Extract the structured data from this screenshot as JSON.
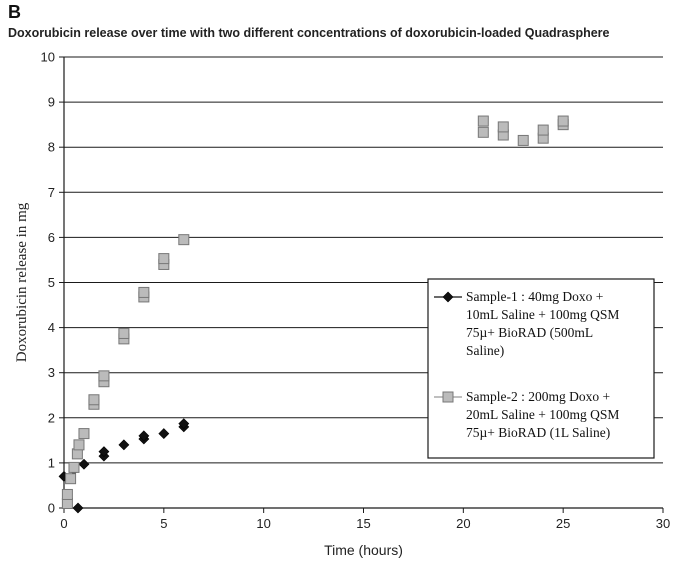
{
  "panel_letter": "B",
  "chart_data": {
    "type": "scatter",
    "title": "Doxorubicin release over time with two different concentrations of doxorubicin-loaded Quadrasphere",
    "xlabel": "Time (hours)",
    "ylabel": "Doxorubicin release in mg",
    "xlim": [
      0,
      30
    ],
    "ylim": [
      0,
      10
    ],
    "x_ticks": [
      "0",
      "5",
      "10",
      "15",
      "20",
      "25",
      "30"
    ],
    "y_ticks": [
      "0",
      "1",
      "2",
      "3",
      "4",
      "5",
      "6",
      "7",
      "8",
      "9",
      "10"
    ],
    "grid": "horizontal",
    "legend_position": "right",
    "series": [
      {
        "name_lines": [
          "Sample-1 : 40mg Doxo +",
          "10mL Saline + 100mg QSM",
          "75µ+ BioRAD (500mL",
          "Saline)"
        ],
        "marker": "diamond",
        "color": "#111111",
        "points": [
          [
            0,
            0.7
          ],
          [
            0.5,
            0.85
          ],
          [
            0.7,
            0.0
          ],
          [
            1,
            0.97
          ],
          [
            2,
            1.15
          ],
          [
            2,
            1.25
          ],
          [
            3,
            1.4
          ],
          [
            4,
            1.53
          ],
          [
            4,
            1.6
          ],
          [
            5,
            1.65
          ],
          [
            6,
            1.8
          ],
          [
            6,
            1.87
          ]
        ]
      },
      {
        "name_lines": [
          "Sample-2 : 200mg Doxo +",
          "20mL Saline + 100mg QSM",
          "75µ+ BioRAD (1L Saline)"
        ],
        "marker": "square",
        "color": "#bbbbbb",
        "points": [
          [
            0.17,
            0.1
          ],
          [
            0.17,
            0.3
          ],
          [
            0.33,
            0.65
          ],
          [
            0.5,
            0.9
          ],
          [
            0.67,
            1.2
          ],
          [
            0.75,
            1.4
          ],
          [
            1,
            1.65
          ],
          [
            1.5,
            2.3
          ],
          [
            1.5,
            2.4
          ],
          [
            2,
            2.8
          ],
          [
            2,
            2.93
          ],
          [
            3,
            3.75
          ],
          [
            3,
            3.87
          ],
          [
            4,
            4.68
          ],
          [
            4,
            4.78
          ],
          [
            5,
            5.4
          ],
          [
            5,
            5.53
          ],
          [
            6,
            5.95
          ],
          [
            21,
            8.33
          ],
          [
            21,
            8.58
          ],
          [
            22,
            8.27
          ],
          [
            22,
            8.45
          ],
          [
            23,
            8.15
          ],
          [
            24,
            8.2
          ],
          [
            24,
            8.38
          ],
          [
            25,
            8.5
          ],
          [
            25,
            8.58
          ]
        ]
      }
    ]
  }
}
